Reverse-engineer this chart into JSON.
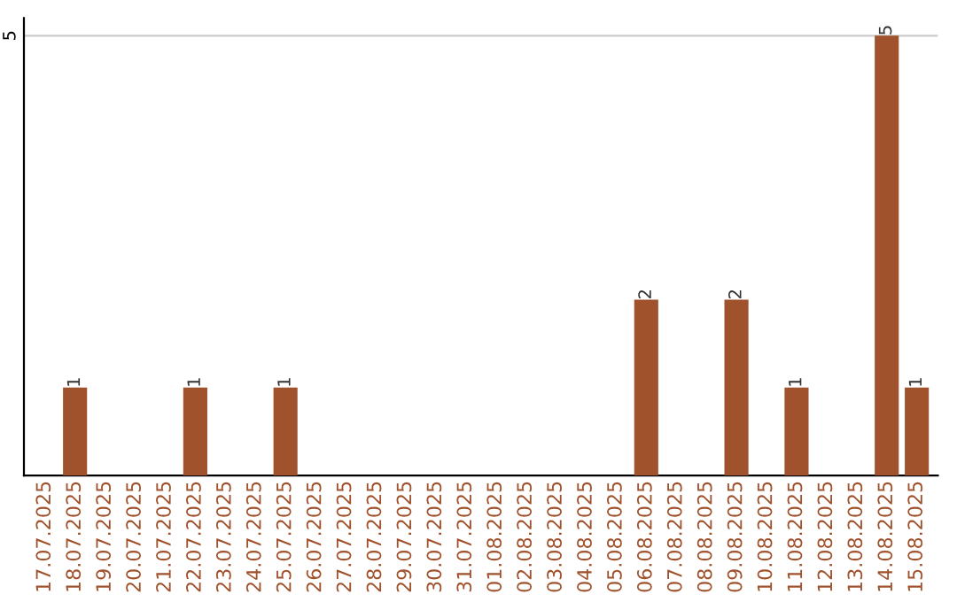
{
  "chart_data": {
    "type": "bar",
    "categories": [
      "17.07.2025",
      "18.07.2025",
      "19.07.2025",
      "20.07.2025",
      "21.07.2025",
      "22.07.2025",
      "23.07.2025",
      "24.07.2025",
      "25.07.2025",
      "26.07.2025",
      "27.07.2025",
      "28.07.2025",
      "29.07.2025",
      "30.07.2025",
      "31.07.2025",
      "01.08.2025",
      "02.08.2025",
      "03.08.2025",
      "04.08.2025",
      "05.08.2025",
      "06.08.2025",
      "07.08.2025",
      "08.08.2025",
      "09.08.2025",
      "10.08.2025",
      "11.08.2025",
      "12.08.2025",
      "13.08.2025",
      "14.08.2025",
      "15.08.2025"
    ],
    "values": [
      0,
      1,
      0,
      0,
      0,
      1,
      0,
      0,
      1,
      0,
      0,
      0,
      0,
      0,
      0,
      0,
      0,
      0,
      0,
      0,
      2,
      0,
      0,
      2,
      0,
      1,
      0,
      0,
      5,
      1
    ],
    "value_labels": [
      null,
      "1",
      null,
      null,
      null,
      "1",
      null,
      null,
      "1",
      null,
      null,
      null,
      null,
      null,
      null,
      null,
      null,
      null,
      null,
      null,
      "2",
      null,
      null,
      "2",
      null,
      "1",
      null,
      null,
      "5",
      "1"
    ],
    "color": "#a0522d",
    "ylim": [
      0,
      5.2
    ],
    "yticks": [
      5
    ],
    "grid": "y"
  }
}
